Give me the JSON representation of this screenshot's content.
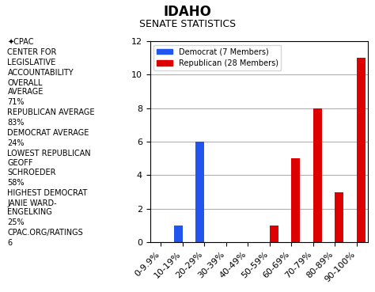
{
  "chart_data": {
    "type": "bar",
    "title": "IDAHO",
    "subtitle": "SENATE STATISTICS",
    "annotations": [
      "✦CPAC",
      "CENTER FOR",
      "LEGISLATIVE",
      "ACCOUNTABILITY",
      "OVERALL\nAVERAGE",
      "71%",
      "REPUBLICAN AVERAGE",
      "83%",
      "DEMOCRAT AVERAGE",
      "24%",
      "LOWEST REPUBLICAN",
      "GEOFF\nSCHROEDER",
      "58%",
      "HIGHEST DEMOCRAT",
      "JANIE WARD-\nENGELKING",
      "25%",
      "CPAC.ORG/RATINGS",
      "6"
    ],
    "categories": [
      "0-9.9%",
      "10-19%",
      "20-29%",
      "30-39%",
      "40-49%",
      "50-59%",
      "60-69%",
      "70-79%",
      "80-89%",
      "90-100%"
    ],
    "series": [
      {
        "name": "Democrat (7 Members)",
        "color": "#2255ee",
        "values": [
          0,
          1,
          6,
          0,
          0,
          0,
          0,
          0,
          0,
          0
        ]
      },
      {
        "name": "Republican (28 Members)",
        "color": "#dd0000",
        "values": [
          0,
          0,
          0,
          0,
          0,
          1,
          5,
          8,
          3,
          11
        ]
      }
    ],
    "ylim": [
      0,
      12
    ],
    "yticks": [
      0,
      2,
      4,
      6,
      8,
      10,
      12
    ],
    "grid": true,
    "legend": "upper left"
  }
}
